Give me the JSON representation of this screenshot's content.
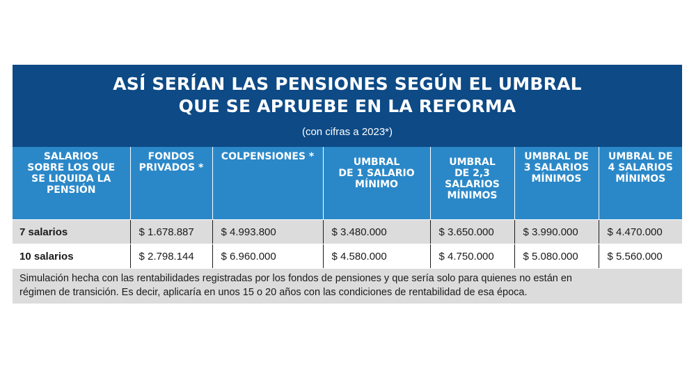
{
  "banner": {
    "title_line1": "ASÍ SERÍAN LAS PENSIONES SEGÚN EL UMBRAL",
    "title_line2": "QUE SE APRUEBE EN LA REFORMA",
    "subtitle": "(con cifras a 2023*)"
  },
  "table": {
    "headers": [
      [
        "SALARIOS",
        "SOBRE LOS QUE",
        "SE LIQUIDA LA",
        "PENSIÓN"
      ],
      [
        "FONDOS",
        "PRIVADOS *"
      ],
      [
        "COLPENSIONES *"
      ],
      [
        "UMBRAL",
        "DE 1 SALARIO",
        "MÍNIMO"
      ],
      [
        "UMBRAL",
        "DE 2,3",
        "SALARIOS",
        "MÍNIMOS"
      ],
      [
        "UMBRAL DE",
        "3 SALARIOS",
        "MÍNIMOS"
      ],
      [
        "UMBRAL DE",
        "4 SALARIOS",
        "MÍNIMOS"
      ]
    ],
    "rows": [
      [
        "7 salarios",
        "$ 1.678.887",
        "$ 4.993.800",
        "$ 3.480.000",
        "$ 3.650.000",
        "$ 3.990.000",
        "$ 4.470.000"
      ],
      [
        "10 salarios",
        "$ 2.798.144",
        "$ 6.960.000",
        "$ 4.580.000",
        "$ 4.750.000",
        "$ 5.080.000",
        "$ 5.560.000"
      ]
    ]
  },
  "footnote": {
    "line1": "Simulación hecha con las rentabilidades registradas por los fondos de pensiones y que sería solo para quienes no están en",
    "line2": "régimen de transición. Es decir, aplicaría en unos 15 o 20 años con las condiciones de rentabilidad de esa época."
  }
}
